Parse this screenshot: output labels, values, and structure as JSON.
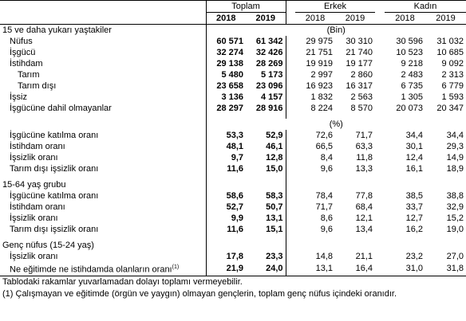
{
  "header": {
    "groups": [
      "Toplam",
      "Erkek",
      "Kadın"
    ],
    "years": [
      "2018",
      "2019",
      "2018",
      "2019",
      "2018",
      "2019"
    ]
  },
  "sections": [
    {
      "title": "15 ve daha yukarı yaştakiler",
      "unit": "(Bin)",
      "rows": [
        {
          "label": "Nüfus",
          "values": [
            "60 571",
            "61 342",
            "29 975",
            "30 310",
            "30 596",
            "31 032"
          ]
        },
        {
          "label": "İşgücü",
          "values": [
            "32 274",
            "32 426",
            "21 751",
            "21 740",
            "10 523",
            "10 685"
          ]
        },
        {
          "label": "İstihdam",
          "values": [
            "29 138",
            "28 269",
            "19 919",
            "19 177",
            "9 218",
            "9 092"
          ],
          "children": [
            {
              "label": "Tarım",
              "values": [
                "5 480",
                "5 173",
                "2 997",
                "2 860",
                "2 483",
                "2 313"
              ]
            },
            {
              "label": "Tarım dışı",
              "values": [
                "23 658",
                "23 096",
                "16 923",
                "16 317",
                "6 735",
                "6 779"
              ]
            }
          ]
        },
        {
          "label": "İşsiz",
          "values": [
            "3 136",
            "4 157",
            "1 832",
            "2 563",
            "1 305",
            "1 593"
          ]
        },
        {
          "label": "İşgücüne dahil olmayanlar",
          "values": [
            "28 297",
            "28 916",
            "8 224",
            "8 570",
            "20 073",
            "20 347"
          ]
        }
      ]
    },
    {
      "unit": "(%)",
      "rows": [
        {
          "label": "İşgücüne katılma oranı",
          "values": [
            "53,3",
            "52,9",
            "72,6",
            "71,7",
            "34,4",
            "34,4"
          ]
        },
        {
          "label": "İstihdam oranı",
          "values": [
            "48,1",
            "46,1",
            "66,5",
            "63,3",
            "30,1",
            "29,3"
          ]
        },
        {
          "label": "İşsizlik oranı",
          "values": [
            "9,7",
            "12,8",
            "8,4",
            "11,8",
            "12,4",
            "14,9"
          ]
        },
        {
          "label": "Tarım dışı işsizlik oranı",
          "values": [
            "11,6",
            "15,0",
            "9,6",
            "13,3",
            "16,1",
            "18,9"
          ]
        }
      ]
    },
    {
      "title": "15-64 yaş grubu",
      "rows": [
        {
          "label": "İşgücüne katılma oranı",
          "values": [
            "58,6",
            "58,3",
            "78,4",
            "77,8",
            "38,5",
            "38,8"
          ]
        },
        {
          "label": "İstihdam oranı",
          "values": [
            "52,7",
            "50,7",
            "71,7",
            "68,4",
            "33,7",
            "32,9"
          ]
        },
        {
          "label": "İşsizlik oranı",
          "values": [
            "9,9",
            "13,1",
            "8,6",
            "12,1",
            "12,7",
            "15,2"
          ]
        },
        {
          "label": "Tarım dışı işsizlik oranı",
          "values": [
            "11,6",
            "15,1",
            "9,6",
            "13,4",
            "16,2",
            "19,0"
          ]
        }
      ]
    },
    {
      "title": "Genç nüfus (15-24 yaş)",
      "rows": [
        {
          "label": "İşsizlik oranı",
          "values": [
            "17,8",
            "23,3",
            "14,8",
            "21,1",
            "23,2",
            "27,0"
          ]
        },
        {
          "label": "Ne eğitimde ne istihdamda olanların oranı",
          "note": "(1)",
          "values": [
            "21,9",
            "24,0",
            "13,1",
            "16,4",
            "31,0",
            "31,8"
          ]
        }
      ]
    }
  ],
  "footnotes": [
    "Tablodaki rakamlar yuvarlamadan dolayı toplamı vermeyebilir.",
    "(1) Çalışmayan ve eğitimde (örgün ve yaygın) olmayan gençlerin, toplam genç nüfus içindeki oranıdır."
  ]
}
